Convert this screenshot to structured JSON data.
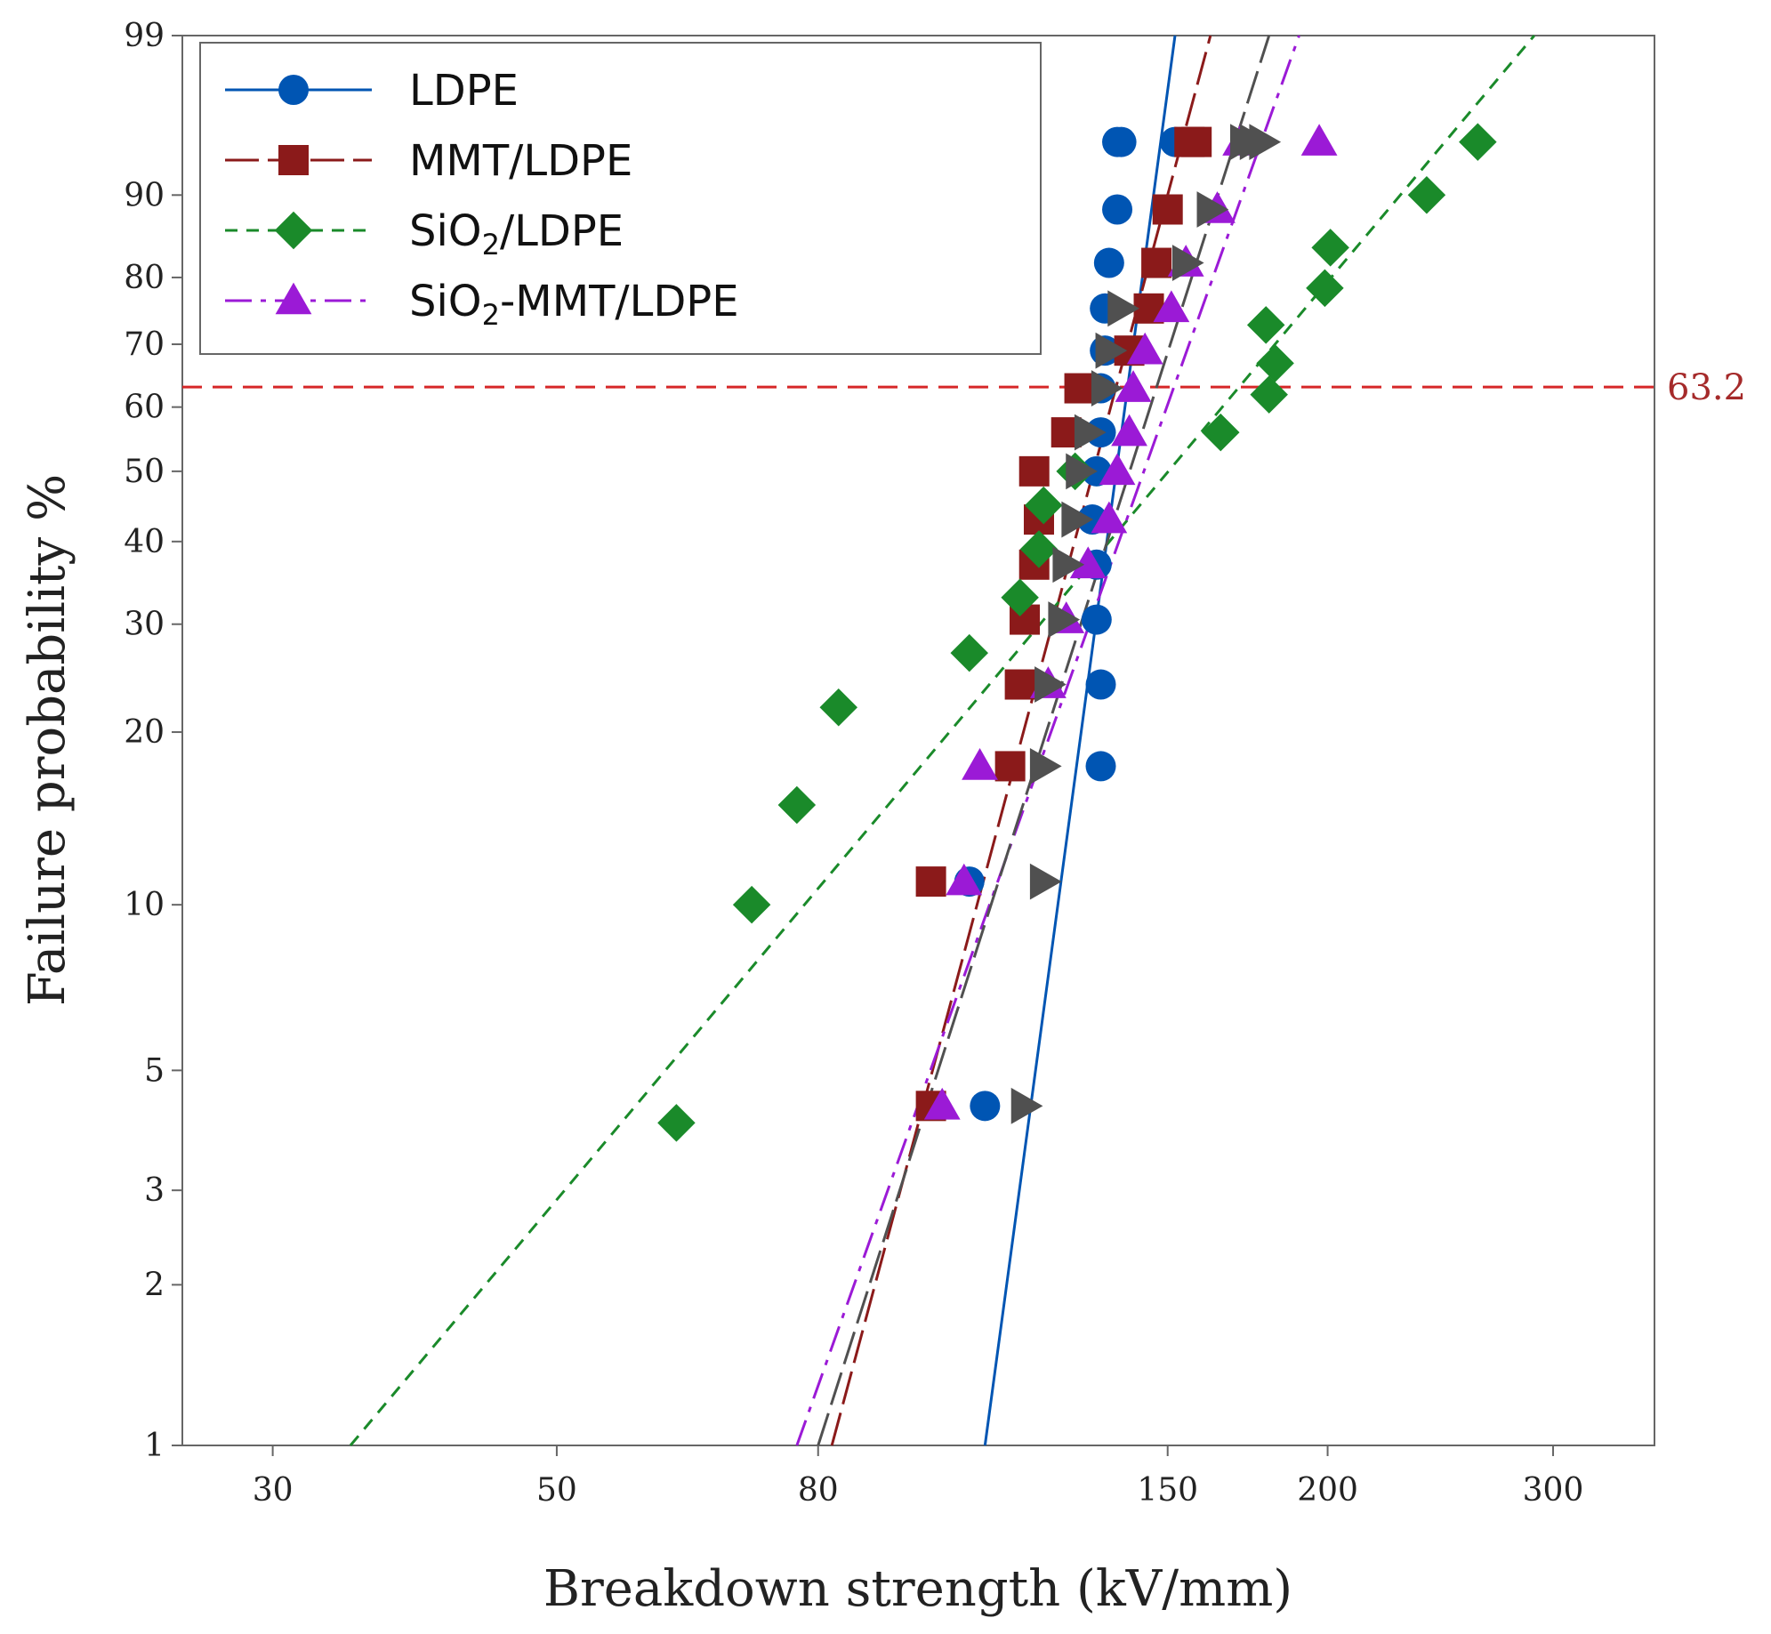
{
  "chart_data": {
    "type": "scatter",
    "title": "",
    "xlabel": "Breakdown strength (kV/mm)",
    "ylabel": "Failure probability %",
    "x_scale": "log",
    "y_scale": "weibull",
    "xlim": [
      25.5,
      360
    ],
    "ylim": [
      1,
      99
    ],
    "x_ticks": [
      30,
      50,
      80,
      150,
      200,
      300
    ],
    "x_tick_labels": [
      "30",
      "50",
      "80",
      "150",
      "200",
      "300"
    ],
    "y_ticks": [
      1,
      2,
      3,
      5,
      10,
      20,
      30,
      40,
      50,
      60,
      70,
      80,
      90,
      99
    ],
    "y_tick_labels": [
      "1",
      "2",
      "3",
      "5",
      "10",
      "20",
      "30",
      "40",
      "50",
      "60",
      "70",
      "80",
      "90",
      "99"
    ],
    "reference_line": {
      "y": 63.2,
      "label": "63.2",
      "color": "#d62728"
    },
    "legend_position": "top-left",
    "series": [
      {
        "name": "LDPE",
        "label_main": "LDPE",
        "label_sub": "",
        "label_tail": "",
        "marker": "circle",
        "line_style": "solid",
        "color": "#0055b3",
        "x": [
          108,
          105,
          133,
          133,
          132,
          132,
          131,
          132,
          133,
          133,
          134,
          134,
          135,
          137,
          137,
          138,
          152
        ],
        "y": [
          4.3,
          11,
          17.5,
          24,
          30.5,
          37,
          43,
          50,
          56,
          63,
          69,
          75.5,
          82,
          88.5,
          94.5,
          94.5,
          94.5
        ],
        "fit": [
          [
            108,
            1
          ],
          [
            152,
            99
          ]
        ]
      },
      {
        "name": "MMT/LDPE",
        "label_main": "MMT/LDPE",
        "label_sub": "",
        "label_tail": "",
        "marker": "square",
        "line_style": "longdash",
        "color": "#8b1a1a",
        "x": [
          98,
          98,
          113,
          115,
          116,
          118,
          119,
          118,
          125,
          128,
          140,
          145,
          147,
          150,
          156,
          158
        ],
        "y": [
          4.3,
          11,
          17.5,
          24,
          30.5,
          37,
          43,
          50,
          56,
          63,
          69,
          75.5,
          82,
          88.5,
          94.5,
          94.5
        ],
        "fit": [
          [
            82,
            1
          ],
          [
            162,
            99
          ]
        ]
      },
      {
        "name": "SiO2/LDPE",
        "label_main": "SiO",
        "label_sub": "2",
        "label_tail": "/LDPE",
        "marker": "diamond",
        "line_style": "dash",
        "color": "#1a8a2a",
        "x": [
          62,
          71,
          77,
          83,
          105,
          115,
          119,
          120,
          127,
          165,
          180,
          182,
          179,
          199,
          201,
          239,
          262
        ],
        "y": [
          4.0,
          10,
          15,
          22,
          27,
          33,
          39,
          45,
          50,
          56,
          62,
          67,
          73,
          78.5,
          84,
          90,
          94.5
        ],
        "fit": [
          [
            34.5,
            1
          ],
          [
            290,
            99
          ]
        ]
      },
      {
        "name": "SiO2-MMT/LDPE",
        "label_main": "SiO",
        "label_sub": "2",
        "label_tail": "-MMT/LDPE",
        "marker": "triangle",
        "line_style": "dashdot",
        "color": "#9b1ad6",
        "x": [
          100,
          104,
          107,
          121,
          125,
          130,
          135,
          137,
          140,
          141,
          144,
          151,
          155,
          164,
          171,
          197
        ],
        "y": [
          4.3,
          11,
          17.5,
          24,
          30.5,
          37,
          43,
          50,
          56,
          63,
          69,
          75.5,
          82,
          88.5,
          94.5,
          94.5
        ],
        "fit": [
          [
            77,
            1
          ],
          [
            190,
            99
          ]
        ]
      },
      {
        "name": "grey",
        "label_main": "",
        "label_sub": "",
        "label_tail": "",
        "marker": "triangle-right",
        "line_style": "longdash",
        "color": "#505050",
        "x": [
          116,
          120,
          120,
          121,
          124,
          125,
          127,
          128,
          130,
          134,
          135,
          138,
          155,
          162,
          172,
          175,
          178
        ],
        "y": [
          4.3,
          11,
          17.5,
          24,
          30.5,
          37,
          43,
          50,
          56,
          63,
          69,
          75.5,
          82,
          88.5,
          94.5,
          94.5,
          94.5
        ],
        "fit": [
          [
            80,
            1
          ],
          [
            180,
            99
          ]
        ],
        "in_legend": false
      }
    ]
  }
}
